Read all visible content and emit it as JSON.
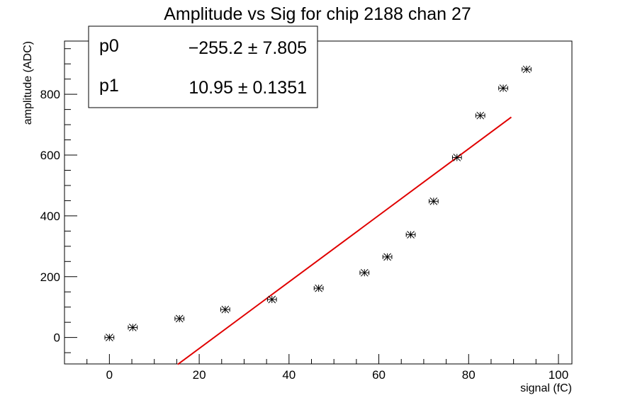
{
  "chart_data": {
    "type": "scatter",
    "title": "Amplitude vs Sig for chip 2188 chan 27",
    "xlabel": "signal (fC)",
    "ylabel": "amplitude (ADC)",
    "xlim": [
      -10,
      103
    ],
    "ylim": [
      -87,
      975
    ],
    "x_ticks": [
      0,
      20,
      40,
      60,
      80,
      100
    ],
    "y_ticks": [
      0,
      200,
      400,
      600,
      800
    ],
    "grid": false,
    "points": [
      {
        "x": 0,
        "y": 0
      },
      {
        "x": 5.2,
        "y": 33
      },
      {
        "x": 15.6,
        "y": 62
      },
      {
        "x": 25.8,
        "y": 92
      },
      {
        "x": 36.2,
        "y": 125
      },
      {
        "x": 46.6,
        "y": 162
      },
      {
        "x": 56.8,
        "y": 213
      },
      {
        "x": 61.9,
        "y": 265
      },
      {
        "x": 67.1,
        "y": 338
      },
      {
        "x": 72.2,
        "y": 448
      },
      {
        "x": 77.4,
        "y": 592
      },
      {
        "x": 82.6,
        "y": 730
      },
      {
        "x": 87.7,
        "y": 820
      },
      {
        "x": 92.9,
        "y": 882
      }
    ],
    "x_error": 1.0,
    "fit": {
      "function": "linear",
      "color": "#e00000",
      "x_range": [
        15.2,
        89.5
      ],
      "params": [
        {
          "name": "p0",
          "value": "−255.2",
          "error": "7.805"
        },
        {
          "name": "p1",
          "value": "10.95",
          "error": "0.1351"
        }
      ]
    }
  }
}
